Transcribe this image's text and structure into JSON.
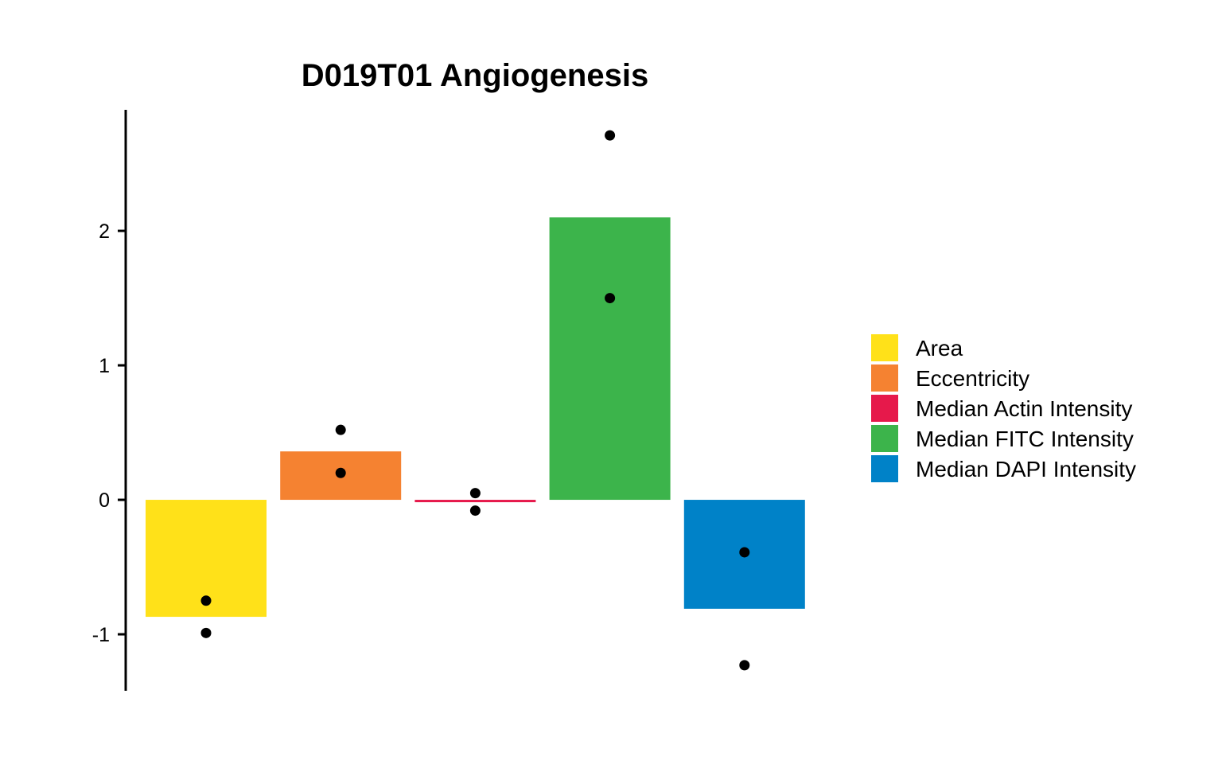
{
  "chart_data": {
    "type": "bar",
    "title": "D019T01 Angiogenesis",
    "xlabel": "",
    "ylabel": "",
    "ylim": [
      -1.42,
      2.9
    ],
    "yticks": [
      -1,
      0,
      1,
      2
    ],
    "grid": false,
    "legend_position": "right",
    "series": [
      {
        "name": "Area",
        "color": "#FFE119",
        "value": -0.87,
        "points": [
          -0.75,
          -0.99
        ]
      },
      {
        "name": "Eccentricity",
        "color": "#F58231",
        "value": 0.36,
        "points": [
          0.52,
          0.2
        ]
      },
      {
        "name": "Median Actin Intensity",
        "color": "#E6194B",
        "value": -0.01,
        "points": [
          0.05,
          -0.08
        ]
      },
      {
        "name": "Median FITC Intensity",
        "color": "#3CB44B",
        "value": 2.1,
        "points": [
          2.71,
          1.5
        ]
      },
      {
        "name": "Median DAPI Intensity",
        "color": "#0082C8",
        "value": -0.81,
        "points": [
          -0.39,
          -1.23
        ]
      }
    ]
  }
}
